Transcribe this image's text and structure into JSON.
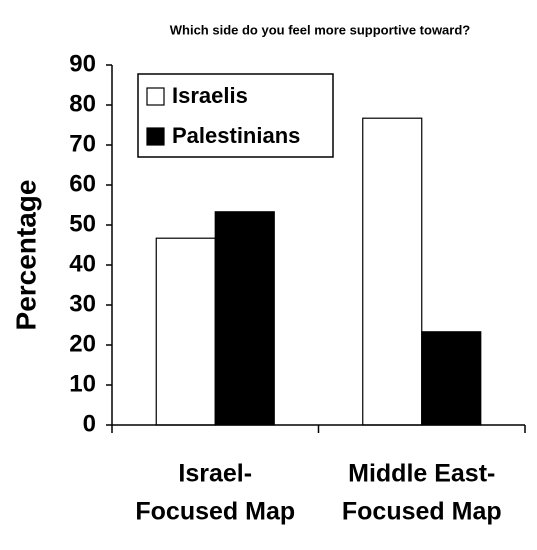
{
  "chart_data": {
    "type": "bar",
    "title": "Which side do you feel more supportive toward?",
    "y_label": "Percentage",
    "categories": [
      [
        "Israel-",
        "Focused Map"
      ],
      [
        "Middle East-",
        "Focused Map"
      ]
    ],
    "series": [
      {
        "name": "Israelis",
        "color": "#ffffff",
        "values": [
          46.7,
          76.7
        ]
      },
      {
        "name": "Palestinians",
        "color": "#000000",
        "values": [
          53.3,
          23.3
        ]
      }
    ],
    "ylim": [
      0,
      90
    ],
    "yticks": [
      0,
      10,
      20,
      30,
      40,
      50,
      60,
      70,
      80,
      90
    ],
    "grid": false,
    "legend": "top-left"
  }
}
